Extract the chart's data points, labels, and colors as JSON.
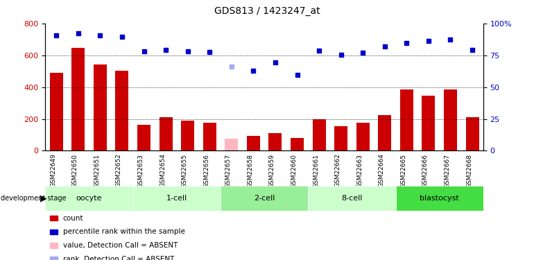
{
  "title": "GDS813 / 1423247_at",
  "samples": [
    "GSM22649",
    "GSM22650",
    "GSM22651",
    "GSM22652",
    "GSM22653",
    "GSM22654",
    "GSM22655",
    "GSM22656",
    "GSM22657",
    "GSM22658",
    "GSM22659",
    "GSM22660",
    "GSM22661",
    "GSM22662",
    "GSM22663",
    "GSM22664",
    "GSM22665",
    "GSM22666",
    "GSM22667",
    "GSM22668"
  ],
  "bar_values": [
    490,
    648,
    543,
    505,
    163,
    210,
    190,
    178,
    75,
    93,
    110,
    80,
    197,
    155,
    178,
    225,
    385,
    345,
    385,
    210
  ],
  "bar_colors": [
    "#cc0000",
    "#cc0000",
    "#cc0000",
    "#cc0000",
    "#cc0000",
    "#cc0000",
    "#cc0000",
    "#cc0000",
    "#ffb6c1",
    "#cc0000",
    "#cc0000",
    "#cc0000",
    "#cc0000",
    "#cc0000",
    "#cc0000",
    "#cc0000",
    "#cc0000",
    "#cc0000",
    "#cc0000",
    "#cc0000"
  ],
  "percentile_values": [
    725,
    737,
    725,
    718,
    623,
    635,
    625,
    622,
    528,
    505,
    553,
    477,
    628,
    605,
    618,
    655,
    675,
    688,
    700,
    635
  ],
  "percentile_colors": [
    "#0000cc",
    "#0000cc",
    "#0000cc",
    "#0000cc",
    "#0000cc",
    "#0000cc",
    "#0000cc",
    "#0000cc",
    "#aaaaee",
    "#0000cc",
    "#0000cc",
    "#0000cc",
    "#0000cc",
    "#0000cc",
    "#0000cc",
    "#0000cc",
    "#0000cc",
    "#0000cc",
    "#0000cc",
    "#0000cc"
  ],
  "ylim_left": [
    0,
    800
  ],
  "ylim_right": [
    0,
    100
  ],
  "yticks_left": [
    0,
    200,
    400,
    600,
    800
  ],
  "yticks_right": [
    0,
    25,
    50,
    75,
    100
  ],
  "ytick_labels_right": [
    "0",
    "25",
    "50",
    "75",
    "100%"
  ],
  "stages": [
    {
      "label": "oocyte",
      "start": 0,
      "end": 3,
      "color": "#ccffcc"
    },
    {
      "label": "1-cell",
      "start": 4,
      "end": 7,
      "color": "#ccffcc"
    },
    {
      "label": "2-cell",
      "start": 8,
      "end": 11,
      "color": "#99ee99"
    },
    {
      "label": "8-cell",
      "start": 12,
      "end": 15,
      "color": "#ccffcc"
    },
    {
      "label": "blastocyst",
      "start": 16,
      "end": 19,
      "color": "#44dd44"
    }
  ],
  "legend_items": [
    {
      "label": "count",
      "color": "#cc0000"
    },
    {
      "label": "percentile rank within the sample",
      "color": "#0000cc"
    },
    {
      "label": "value, Detection Call = ABSENT",
      "color": "#ffb6c1"
    },
    {
      "label": "rank, Detection Call = ABSENT",
      "color": "#aaaaee"
    }
  ],
  "bg_color": "#ffffff",
  "grid_color": "#000000",
  "xlabel_bg": "#c8c8c8",
  "stage_border": "#888888"
}
